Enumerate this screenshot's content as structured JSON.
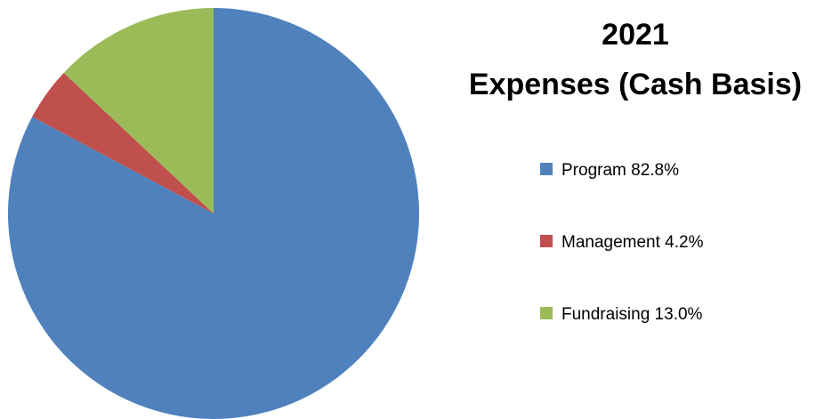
{
  "chart_data": {
    "type": "pie",
    "title": [
      "2021",
      "Expenses (Cash Basis)"
    ],
    "slices": [
      {
        "name": "Program",
        "label": "Program 82.8%",
        "value": 82.8,
        "color": "#4f81bd"
      },
      {
        "name": "Management",
        "label": "Management 4.2%",
        "value": 4.2,
        "color": "#c0504d"
      },
      {
        "name": "Fundraising",
        "label": "Fundraising 13.0%",
        "value": 13.0,
        "color": "#9bbb59"
      }
    ],
    "start_angle": "12 o'clock",
    "direction": "clockwise",
    "legend_position": "right"
  }
}
